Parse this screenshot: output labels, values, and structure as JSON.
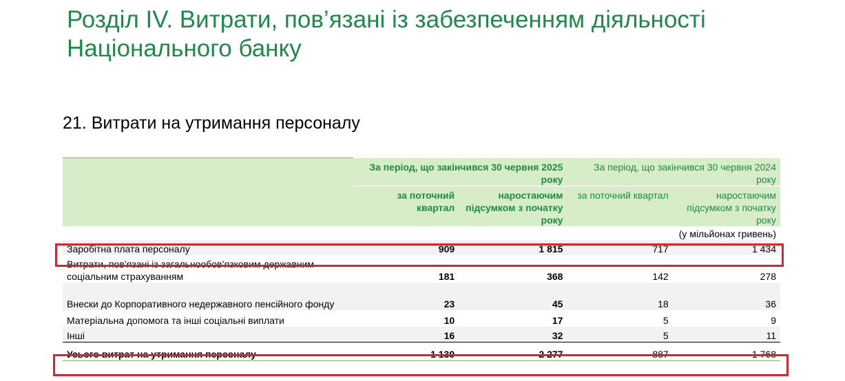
{
  "section_title": "Розділ IV. Витрати, пов’язані із забезпеченням діяльності Національного банку",
  "subsection_title": "21. Витрати на утримання персоналу",
  "table": {
    "period_2025": "За період, що закінчився 30 червня 2025 року",
    "period_2024": "За період, що закінчився 30 червня 2024 року",
    "sub_quarter": "за поточний квартал",
    "sub_cumulative": "наростаючим підсумком з початку року",
    "units": "(у мільйонах гривень)",
    "rows": [
      {
        "label": "Заробітна плата персоналу",
        "q2025": "909",
        "c2025": "1 815",
        "q2024": "717",
        "c2024": "1 434"
      },
      {
        "label": "Витрати, пов’язані із загальнообов’язковим державним соціальним страхуванням",
        "q2025": "181",
        "c2025": "368",
        "q2024": "142",
        "c2024": "278"
      },
      {
        "label": "Внески до Корпоративного недержавного пенсійного фонду",
        "q2025": "23",
        "c2025": "45",
        "q2024": "18",
        "c2024": "36"
      },
      {
        "label": "Матеріальна допомога та інші соціальні виплати",
        "q2025": "10",
        "c2025": "17",
        "q2024": "5",
        "c2024": "9"
      },
      {
        "label": "Інші",
        "q2025": "16",
        "c2025": "32",
        "q2024": "5",
        "c2024": "11"
      }
    ],
    "total": {
      "label": "Усього витрат на утримання персоналу",
      "q2025": "1 139",
      "c2025": "2 277",
      "q2024": "887",
      "c2024": "1 768"
    }
  },
  "colors": {
    "accent_green": "#1e8a4a",
    "header_bg": "#d7ecc9",
    "highlight_red": "#d9232e"
  }
}
